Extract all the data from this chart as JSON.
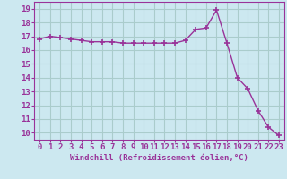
{
  "x": [
    0,
    1,
    2,
    3,
    4,
    5,
    6,
    7,
    8,
    9,
    10,
    11,
    12,
    13,
    14,
    15,
    16,
    17,
    18,
    19,
    20,
    21,
    22,
    23
  ],
  "y": [
    16.8,
    17.0,
    16.9,
    16.8,
    16.7,
    16.6,
    16.6,
    16.6,
    16.5,
    16.5,
    16.5,
    16.5,
    16.5,
    16.5,
    16.7,
    17.5,
    17.6,
    18.9,
    16.5,
    14.0,
    13.2,
    11.6,
    10.4,
    9.8
  ],
  "line_color": "#993399",
  "marker": "+",
  "marker_size": 4,
  "bg_color": "#cce8f0",
  "grid_color": "#aacccc",
  "xlabel": "Windchill (Refroidissement éolien,°C)",
  "xlabel_fontsize": 6.5,
  "xtick_labels": [
    "0",
    "1",
    "2",
    "3",
    "4",
    "5",
    "6",
    "7",
    "8",
    "9",
    "10",
    "11",
    "12",
    "13",
    "14",
    "15",
    "16",
    "17",
    "18",
    "19",
    "20",
    "21",
    "22",
    "23"
  ],
  "ytick_labels": [
    "10",
    "11",
    "12",
    "13",
    "14",
    "15",
    "16",
    "17",
    "18",
    "19"
  ],
  "ylim": [
    9.5,
    19.5
  ],
  "xlim": [
    -0.5,
    23.5
  ],
  "tick_color": "#993399",
  "tick_fontsize": 6.5,
  "linewidth": 1.0
}
